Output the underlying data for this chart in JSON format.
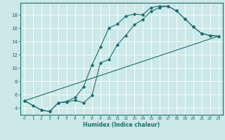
{
  "xlabel": "Humidex (Indice chaleur)",
  "ylabel": "",
  "bg_color": "#cce8e8",
  "grid_color": "#ffffff",
  "line_color": "#1a7070",
  "xlim": [
    -0.5,
    23.5
  ],
  "ylim": [
    3.0,
    19.8
  ],
  "yticks": [
    4,
    6,
    8,
    10,
    12,
    14,
    16,
    18
  ],
  "xticks": [
    0,
    1,
    2,
    3,
    4,
    5,
    6,
    7,
    8,
    9,
    10,
    11,
    12,
    13,
    14,
    15,
    16,
    17,
    18,
    19,
    20,
    21,
    22,
    23
  ],
  "line1": {
    "x": [
      0,
      1,
      2,
      3,
      4,
      5,
      6,
      7,
      8,
      9,
      10,
      11,
      12,
      13,
      14,
      15,
      16,
      17,
      18,
      19,
      20,
      21,
      22,
      23
    ],
    "y": [
      5.1,
      4.4,
      3.7,
      3.5,
      4.8,
      5.0,
      5.6,
      7.2,
      10.5,
      13.2,
      16.0,
      16.6,
      17.8,
      18.1,
      18.0,
      19.1,
      19.3,
      19.3,
      18.6,
      17.4,
      16.2,
      15.2,
      14.9,
      14.8
    ]
  },
  "line2": {
    "x": [
      0,
      2,
      3,
      4,
      5,
      6,
      7,
      8,
      9,
      10,
      11,
      12,
      13,
      14,
      15,
      16,
      17,
      18,
      19,
      20,
      21,
      22,
      23
    ],
    "y": [
      5.1,
      3.7,
      3.5,
      4.8,
      4.9,
      5.2,
      4.8,
      5.9,
      10.8,
      11.3,
      13.5,
      14.9,
      16.5,
      17.3,
      18.5,
      19.1,
      19.3,
      18.6,
      17.4,
      16.2,
      15.2,
      14.9,
      14.8
    ]
  },
  "line3": {
    "x": [
      0,
      23
    ],
    "y": [
      5.1,
      14.8
    ]
  },
  "xlabel_fontsize": 5.5,
  "xlabel_fontweight": "bold",
  "xtick_fontsize": 4.2,
  "ytick_fontsize": 5.0
}
